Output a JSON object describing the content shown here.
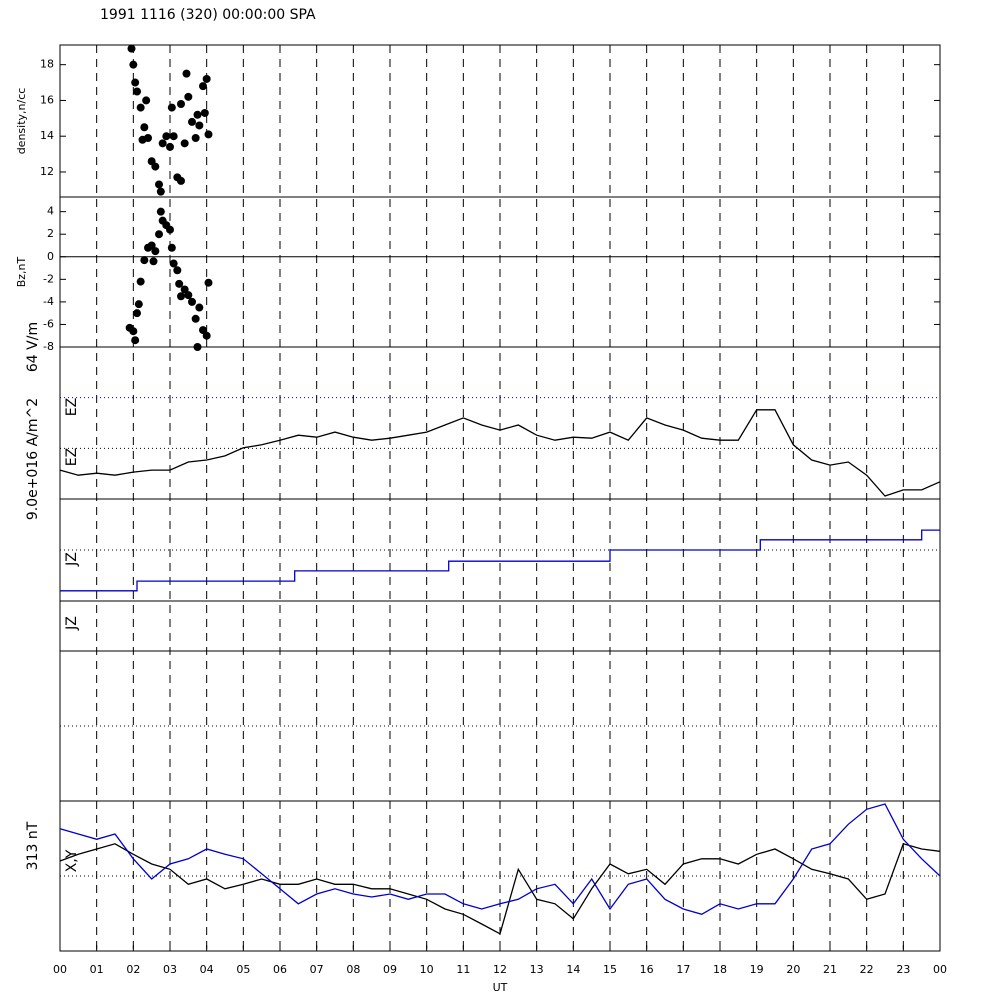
{
  "chart_data": [
    {
      "type": "scatter",
      "title": "1991 1116 (320) 00:00:00 SPA",
      "ylabel": "density,n/cc",
      "color": "#000000",
      "xlim": [
        0,
        24
      ],
      "ylim": [
        10.6,
        19.1
      ],
      "yticks": [
        12,
        14,
        16,
        18
      ],
      "x": [
        1.95,
        2.0,
        2.05,
        2.1,
        2.2,
        2.3,
        2.25,
        2.4,
        2.5,
        2.6,
        2.7,
        2.75,
        2.8,
        2.9,
        3.0,
        3.05,
        3.1,
        3.2,
        3.3,
        3.3,
        3.4,
        3.45,
        3.5,
        3.6,
        3.7,
        3.75,
        3.8,
        3.9,
        3.95,
        4.05,
        4.0,
        2.35
      ],
      "values": [
        18.9,
        18.0,
        17.0,
        16.5,
        15.6,
        14.5,
        13.8,
        13.9,
        12.6,
        12.3,
        11.3,
        10.9,
        13.6,
        14.0,
        13.4,
        15.6,
        14.0,
        11.7,
        11.5,
        15.8,
        13.6,
        17.5,
        16.2,
        14.8,
        13.9,
        15.2,
        14.6,
        16.8,
        15.3,
        14.1,
        17.2,
        16.0
      ]
    },
    {
      "type": "scatter",
      "ylabel": "Bz,nT",
      "color": "#000000",
      "zero_line": true,
      "xlim": [
        0,
        24
      ],
      "ylim": [
        -8,
        5.3
      ],
      "yticks": [
        -8,
        -6,
        -4,
        -2,
        0,
        2,
        4
      ],
      "x": [
        1.9,
        2.0,
        2.05,
        2.1,
        2.2,
        2.3,
        2.4,
        2.5,
        2.6,
        2.7,
        2.75,
        2.8,
        2.9,
        3.0,
        3.05,
        3.1,
        3.2,
        3.25,
        3.3,
        3.4,
        3.5,
        3.6,
        3.7,
        3.8,
        3.9,
        4.0,
        4.05,
        3.75,
        2.55,
        2.15
      ],
      "values": [
        -6.3,
        -6.6,
        -7.4,
        -5.0,
        -2.2,
        -0.3,
        0.8,
        1.0,
        0.5,
        2.0,
        4.0,
        3.2,
        2.8,
        2.4,
        0.8,
        -0.6,
        -1.2,
        -2.4,
        -3.5,
        -2.9,
        -3.4,
        -4.0,
        -5.5,
        -4.5,
        -6.5,
        -7.0,
        -2.3,
        -8.0,
        -0.4,
        -4.2
      ]
    },
    {
      "type": "line",
      "scale_label": "64 V/m",
      "labels": [
        "EZ",
        "EZ"
      ],
      "xlim": [
        0,
        24
      ],
      "ylim": [
        0,
        3
      ],
      "reference_lines": [
        {
          "value": 1,
          "color": "#000000"
        },
        {
          "value": 2,
          "color": "#0000cc"
        }
      ],
      "x": [
        0,
        0.5,
        1,
        1.5,
        2,
        2.5,
        3,
        3.5,
        4,
        4.5,
        5,
        5.5,
        6,
        6.5,
        7,
        7.5,
        8,
        8.5,
        9,
        9.5,
        10,
        10.5,
        11,
        11.5,
        12,
        12.5,
        13,
        13.5,
        14,
        14.5,
        15,
        15.5,
        16,
        16.5,
        17,
        17.5,
        18,
        18.5,
        19,
        19.5,
        20,
        20.5,
        21,
        21.5,
        22,
        22.5,
        23,
        23.5,
        24
      ],
      "series": [
        {
          "color": "#000000",
          "values": [
            0.57,
            0.47,
            0.51,
            0.47,
            0.53,
            0.57,
            0.57,
            0.73,
            0.77,
            0.85,
            1.01,
            1.07,
            1.16,
            1.26,
            1.22,
            1.32,
            1.22,
            1.16,
            1.2,
            1.26,
            1.32,
            1.46,
            1.6,
            1.46,
            1.36,
            1.46,
            1.26,
            1.16,
            1.22,
            1.2,
            1.32,
            1.16,
            1.6,
            1.46,
            1.36,
            1.2,
            1.16,
            1.16,
            1.76,
            1.76,
            1.07,
            0.77,
            0.67,
            0.73,
            0.47,
            0.06,
            0.18,
            0.18,
            0.34
          ]
        }
      ]
    },
    {
      "type": "line",
      "scale_label": "9.0e+016 A/m^2",
      "labels": [
        "JZ"
      ],
      "xlim": [
        0,
        24
      ],
      "ylim": [
        0,
        2
      ],
      "reference_lines": [
        {
          "value": 1,
          "color": "#000000"
        }
      ],
      "x": [
        0,
        2.1,
        2.1,
        6.4,
        6.4,
        10.6,
        10.6,
        15,
        15,
        19.1,
        19.1,
        23.5,
        23.5,
        24
      ],
      "series": [
        {
          "color": "#0000cc",
          "values": [
            0.2,
            0.2,
            0.39,
            0.39,
            0.59,
            0.59,
            0.78,
            0.78,
            1.0,
            1.0,
            1.2,
            1.2,
            1.39,
            1.39
          ]
        }
      ]
    },
    {
      "type": "empty",
      "labels": [
        "JZ"
      ],
      "xlim": [
        0,
        24
      ],
      "ylim": [
        0,
        4
      ],
      "reference_lines": [
        {
          "value": 1.5,
          "color": "#000000"
        }
      ],
      "solid_lines": [
        3
      ]
    },
    {
      "type": "line",
      "scale_label": "313 nT",
      "labels": [
        "X,Y"
      ],
      "xlabel": "UT",
      "xlim": [
        0,
        24
      ],
      "ylim": [
        -1,
        1
      ],
      "reference_lines": [
        {
          "value": 0,
          "color": "#000000"
        }
      ],
      "xticks": [
        {
          "value": 0,
          "label": "00"
        },
        {
          "value": 1,
          "label": "01"
        },
        {
          "value": 2,
          "label": "02"
        },
        {
          "value": 3,
          "label": "03"
        },
        {
          "value": 4,
          "label": "04"
        },
        {
          "value": 5,
          "label": "05"
        },
        {
          "value": 6,
          "label": "06"
        },
        {
          "value": 7,
          "label": "07"
        },
        {
          "value": 8,
          "label": "08"
        },
        {
          "value": 9,
          "label": "09"
        },
        10,
        11,
        12,
        13,
        14,
        15,
        16,
        17,
        18,
        19,
        20,
        21,
        22,
        23,
        {
          "value": 24,
          "label": "00"
        }
      ],
      "x": [
        0,
        0.5,
        1,
        1.5,
        2,
        2.5,
        3,
        3.5,
        4,
        4.5,
        5,
        5.5,
        6,
        6.5,
        7,
        7.5,
        8,
        8.5,
        9,
        9.5,
        10,
        10.5,
        11,
        11.5,
        12,
        12.5,
        13,
        13.5,
        14,
        14.5,
        15,
        15.5,
        16,
        16.5,
        17,
        17.5,
        18,
        18.5,
        19,
        19.5,
        20,
        20.5,
        21,
        21.5,
        22,
        22.5,
        23,
        23.5,
        24
      ],
      "series": [
        {
          "color": "#000000",
          "values": [
            0.2,
            0.29,
            0.36,
            0.43,
            0.29,
            0.16,
            0.09,
            -0.11,
            -0.04,
            -0.17,
            -0.11,
            -0.04,
            -0.11,
            -0.11,
            -0.04,
            -0.11,
            -0.11,
            -0.17,
            -0.17,
            -0.24,
            -0.31,
            -0.44,
            -0.51,
            -0.64,
            -0.77,
            0.09,
            -0.31,
            -0.37,
            -0.57,
            -0.17,
            0.16,
            0.03,
            0.09,
            -0.11,
            0.16,
            0.23,
            0.23,
            0.16,
            0.29,
            0.36,
            0.23,
            0.09,
            0.03,
            -0.04,
            -0.31,
            -0.24,
            0.43,
            0.36,
            0.33
          ]
        },
        {
          "color": "#0000cc",
          "values": [
            0.63,
            0.56,
            0.49,
            0.56,
            0.23,
            -0.04,
            0.16,
            0.23,
            0.36,
            0.29,
            0.23,
            0.03,
            -0.17,
            -0.37,
            -0.24,
            -0.17,
            -0.24,
            -0.28,
            -0.24,
            -0.31,
            -0.24,
            -0.24,
            -0.37,
            -0.44,
            -0.37,
            -0.31,
            -0.17,
            -0.11,
            -0.37,
            -0.04,
            -0.44,
            -0.11,
            -0.04,
            -0.31,
            -0.44,
            -0.51,
            -0.37,
            -0.44,
            -0.37,
            -0.37,
            -0.04,
            0.36,
            0.43,
            0.69,
            0.89,
            0.96,
            0.49,
            0.23,
            0
          ]
        }
      ]
    }
  ]
}
